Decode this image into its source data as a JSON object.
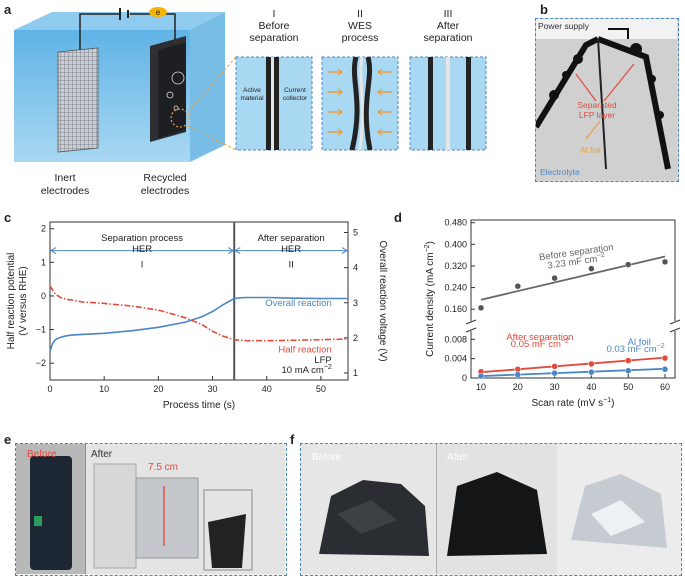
{
  "panels": {
    "a": "a",
    "b": "b",
    "c": "c",
    "d": "d",
    "e": "e",
    "f": "f"
  },
  "panel_a": {
    "electron": "e",
    "inert": "Inert\nelectrodes",
    "inert_l1": "Inert",
    "inert_l2": "electrodes",
    "recycled_l1": "Recycled",
    "recycled_l2": "electrodes",
    "stages": [
      {
        "num": "I",
        "l1": "Before",
        "l2": "separation"
      },
      {
        "num": "II",
        "l1": "WES",
        "l2": "process"
      },
      {
        "num": "III",
        "l1": "After",
        "l2": "separation"
      }
    ],
    "active_l1": "Active",
    "active_l2": "material",
    "collector_l1": "Current",
    "collector_l2": "collector"
  },
  "panel_b": {
    "power": "Power supply",
    "sep_l1": "Separated",
    "sep_l2": "LFP layer",
    "al": "Al foil",
    "electrolyte": "Electrolyte"
  },
  "chart_data": [
    {
      "type": "line",
      "panel": "c",
      "xlabel": "Process time (s)",
      "ylabel_left": "Half reaction potential\n(V versus RHE)",
      "ylabel_left_l1": "Half reaction potential",
      "ylabel_left_l2": "(V versus RHE)",
      "ylabel_right": "Overall reaction voltage (V)",
      "xticks": [
        0,
        10,
        20,
        30,
        40,
        50
      ],
      "yticks_left": [
        -2,
        -1,
        0,
        1,
        2
      ],
      "yticks_right": [
        1,
        2,
        3,
        4,
        5
      ],
      "xlim": [
        0,
        55
      ],
      "ylim_left": [
        -2.5,
        2.2
      ],
      "ylim_right": [
        0.8,
        5.3
      ],
      "regions": [
        {
          "label": "I",
          "title_l1": "Separation process",
          "title_l2": "HER",
          "x": [
            0,
            34
          ]
        },
        {
          "label": "II",
          "title_l1": "After separation",
          "title_l2": "HER",
          "x": [
            34,
            55
          ]
        }
      ],
      "divider_x": 34,
      "series": [
        {
          "name": "Overall reaction",
          "axis": "right",
          "color": "#4a86c5",
          "x": [
            0,
            0.5,
            1,
            2,
            3,
            4,
            6,
            10,
            15,
            20,
            25,
            28,
            30,
            32,
            34,
            36,
            40,
            45,
            50,
            55
          ],
          "y": [
            1.62,
            1.85,
            1.95,
            2.02,
            2.06,
            2.08,
            2.1,
            2.13,
            2.2,
            2.3,
            2.45,
            2.6,
            2.75,
            2.95,
            3.12,
            3.15,
            3.15,
            3.13,
            3.12,
            3.12
          ]
        },
        {
          "name": "Half reaction",
          "axis": "left",
          "color": "#e24a3b",
          "x": [
            0,
            1,
            2,
            3,
            4,
            6,
            10,
            15,
            20,
            25,
            28,
            30,
            32,
            34,
            36,
            40,
            45,
            50,
            55
          ],
          "y": [
            0.3,
            0.05,
            -0.05,
            -0.1,
            -0.12,
            -0.18,
            -0.22,
            -0.3,
            -0.42,
            -0.65,
            -0.85,
            -1.05,
            -1.2,
            -1.3,
            -1.33,
            -1.33,
            -1.32,
            -1.3,
            -1.28
          ]
        }
      ],
      "annotation_l1": "LFP",
      "annotation_l2": "10 mA cm",
      "annotation_sup": "−2"
    },
    {
      "type": "scatter",
      "panel": "d",
      "xlabel": "Scan rate (mV s",
      "xlabel_sup": "−1",
      "xlabel_end": ")",
      "ylabel": "Current density (mA cm",
      "ylabel_sup": "−2",
      "ylabel_end": ")",
      "xticks": [
        10,
        20,
        30,
        40,
        50,
        60
      ],
      "yticks_top": [
        "0.480",
        "0.400",
        "0.320",
        "0.240",
        "0.160"
      ],
      "yticks_bottom": [
        "0.008",
        "0.004",
        "0"
      ],
      "x": [
        10,
        20,
        30,
        40,
        50,
        60
      ],
      "series": [
        {
          "name": "Before separation",
          "color": "#666666",
          "label_l1": "Before separation",
          "label_l2": "3.23 mF cm",
          "label_sup": "−2",
          "y": [
            0.165,
            0.245,
            0.275,
            0.31,
            0.325,
            0.335
          ],
          "fit": [
            0.195,
            0.355
          ]
        },
        {
          "name": "After separation",
          "color": "#e24a3b",
          "label_l1": "After separation",
          "label_l2": "0.05 mF cm",
          "label_sup": "−2",
          "y": [
            0.0013,
            0.0018,
            0.0024,
            0.0029,
            0.0036,
            0.0041
          ],
          "fit": [
            0.0012,
            0.0042
          ]
        },
        {
          "name": "Al foil",
          "color": "#4a86c5",
          "label_l1": "Al foil",
          "label_l2": "0.03 mF cm",
          "label_sup": "−2",
          "y": [
            0.0004,
            0.0007,
            0.001,
            0.0012,
            0.0015,
            0.0018
          ],
          "fit": [
            0.0004,
            0.0019
          ]
        }
      ]
    }
  ],
  "panel_e": {
    "before": "Before",
    "after": "After",
    "dim": "7.5 cm"
  },
  "panel_f": {
    "before": "Before",
    "after": "After"
  }
}
